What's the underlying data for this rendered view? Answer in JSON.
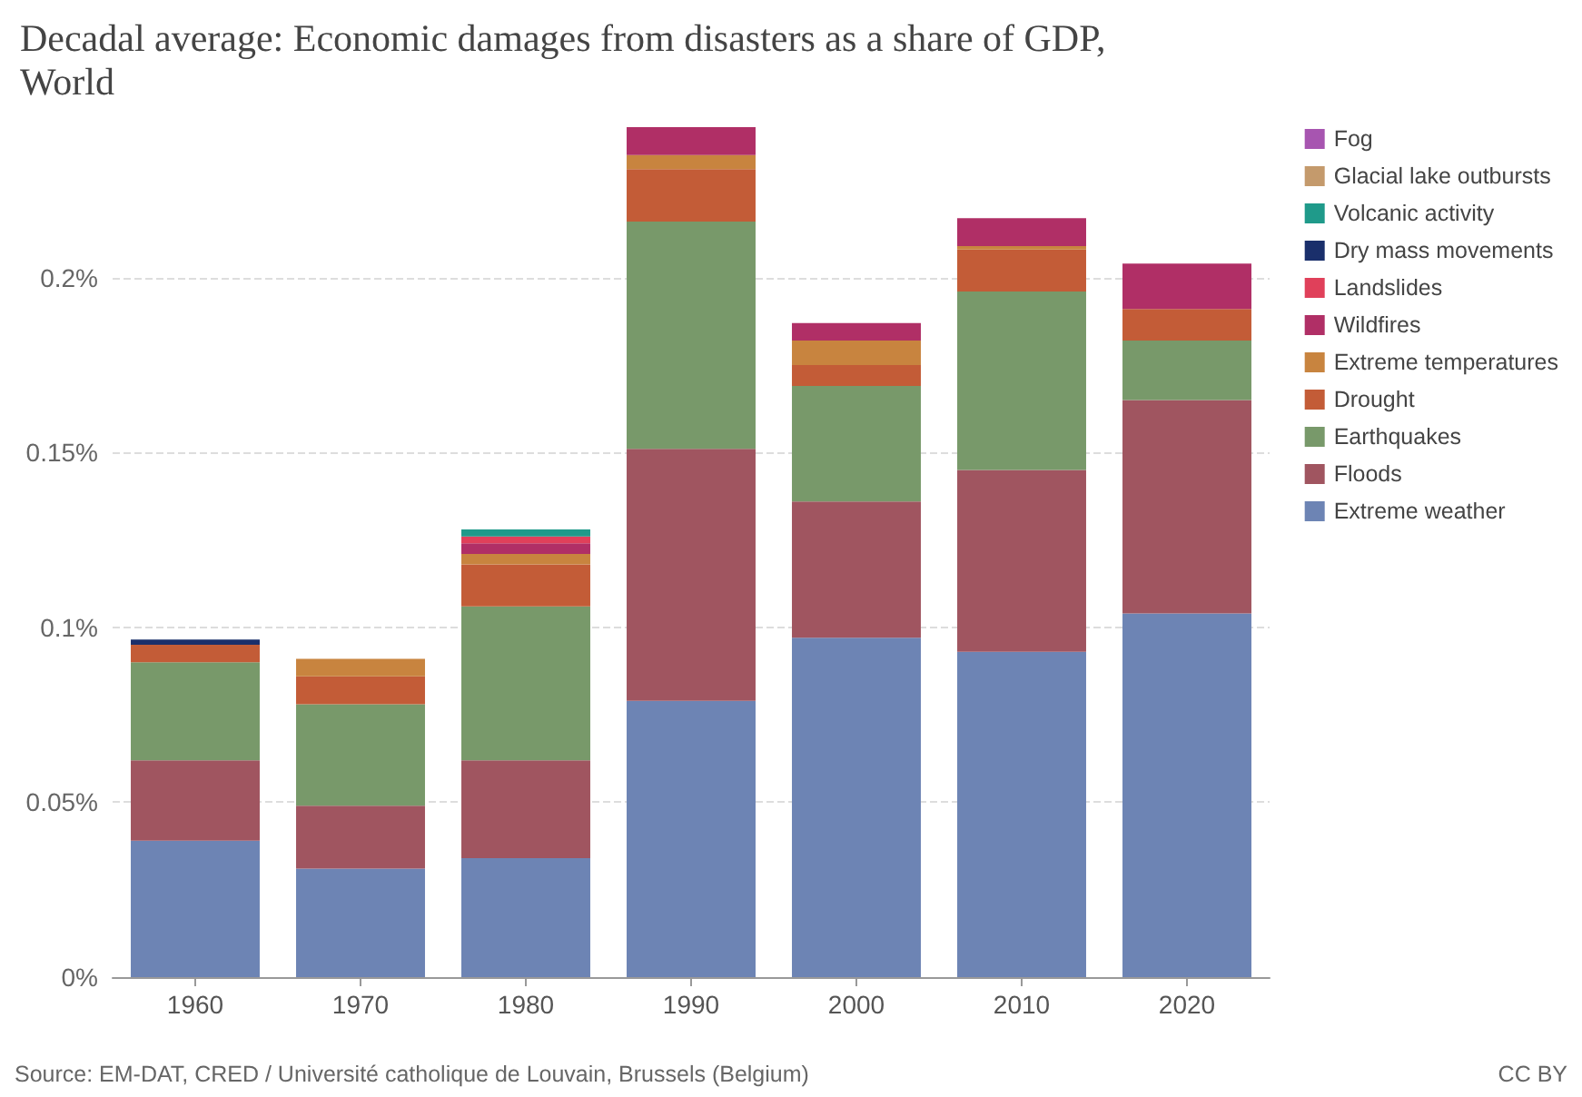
{
  "chart_data": {
    "type": "bar",
    "stacked": true,
    "title": "Decadal average: Economic damages from disasters as a share of GDP,\nWorld",
    "categories": [
      "1960",
      "1970",
      "1980",
      "1990",
      "2000",
      "2010",
      "2020"
    ],
    "series": [
      {
        "name": "Extreme weather",
        "color": "#6d84b4",
        "values": [
          0.039,
          0.031,
          0.034,
          0.079,
          0.097,
          0.093,
          0.104
        ]
      },
      {
        "name": "Floods",
        "color": "#a05560",
        "values": [
          0.023,
          0.018,
          0.028,
          0.072,
          0.039,
          0.052,
          0.061
        ]
      },
      {
        "name": "Earthquakes",
        "color": "#78996a",
        "values": [
          0.028,
          0.029,
          0.044,
          0.065,
          0.033,
          0.051,
          0.017
        ]
      },
      {
        "name": "Drought",
        "color": "#c35c37",
        "values": [
          0.005,
          0.008,
          0.012,
          0.015,
          0.006,
          0.012,
          0.009
        ]
      },
      {
        "name": "Extreme temperatures",
        "color": "#c8843f",
        "values": [
          null,
          0.005,
          0.003,
          0.004,
          0.007,
          0.001,
          null
        ]
      },
      {
        "name": "Wildfires",
        "color": "#b02f66",
        "values": [
          null,
          null,
          0.003,
          0.008,
          0.005,
          0.008,
          0.013
        ]
      },
      {
        "name": "Landslides",
        "color": "#e0405a",
        "values": [
          null,
          null,
          0.002,
          null,
          null,
          null,
          null
        ]
      },
      {
        "name": "Dry mass movements",
        "color": "#1a2f6b",
        "values": [
          0.0015,
          null,
          null,
          null,
          null,
          null,
          null
        ]
      },
      {
        "name": "Volcanic activity",
        "color": "#1f9a8a",
        "values": [
          null,
          null,
          0.002,
          null,
          null,
          null,
          null
        ]
      },
      {
        "name": "Glacial lake outbursts",
        "color": "#c49a6c",
        "values": [
          null,
          null,
          null,
          null,
          null,
          null,
          null
        ]
      },
      {
        "name": "Fog",
        "color": "#a755b0",
        "values": [
          null,
          null,
          null,
          null,
          null,
          null,
          null
        ]
      }
    ],
    "ylim": [
      0,
      0.243
    ],
    "yticks": [
      {
        "value": 0,
        "label": "0%"
      },
      {
        "value": 0.05,
        "label": "0.05%"
      },
      {
        "value": 0.1,
        "label": "0.1%"
      },
      {
        "value": 0.15,
        "label": "0.15%"
      },
      {
        "value": 0.2,
        "label": "0.2%"
      }
    ],
    "grid": "y",
    "legend": "right",
    "annotations": [
      "Source: EM-DAT, CRED / Université catholique de Louvain, Brussels (Belgium)",
      "CC BY"
    ]
  }
}
